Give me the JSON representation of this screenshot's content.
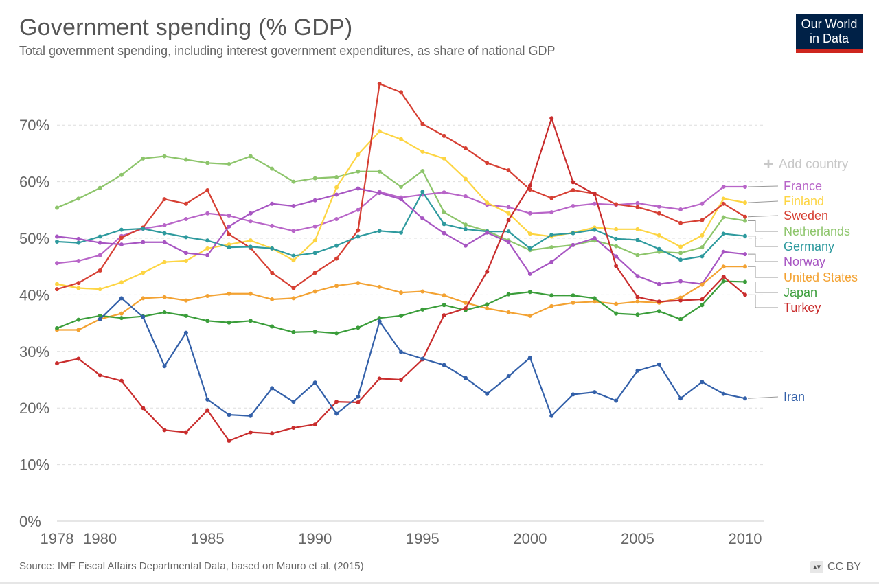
{
  "header": {
    "title": "Government spending (% GDP)",
    "subtitle": "Total government spending, including interest government expenditures, as share of national GDP"
  },
  "logo": {
    "line1": "Our World",
    "line2": "in Data"
  },
  "controls": {
    "add_country_label": "Add country"
  },
  "footer": {
    "source": "Source: IMF Fiscal Affairs Departmental Data, based on Mauro et al. (2015)",
    "license": "CC BY"
  },
  "colors": {
    "grid": "#dddddd",
    "axis_text": "#666666",
    "leader": "#999999"
  },
  "chart_data": {
    "type": "line",
    "title": "Government spending (% GDP)",
    "xlim": [
      1978,
      2010
    ],
    "ylim": [
      0,
      70
    ],
    "y_ticks": [
      0,
      10,
      20,
      30,
      40,
      50,
      60,
      70
    ],
    "y_tick_labels": [
      "0%",
      "10%",
      "20%",
      "30%",
      "40%",
      "50%",
      "60%",
      "70%"
    ],
    "x_ticks": [
      1978,
      1980,
      1985,
      1990,
      1995,
      2000,
      2005,
      2010
    ],
    "x_tick_labels": [
      "1978",
      "1980",
      "1985",
      "1990",
      "1995",
      "2000",
      "2005",
      "2010"
    ],
    "grid": "horizontal dashed",
    "legend_placement": "right (inline labels)",
    "series": [
      {
        "name": "Netherlands",
        "color": "#8dc56b",
        "start_year": 1978,
        "values": [
          55.4,
          57.0,
          58.9,
          61.2,
          64.1,
          64.5,
          63.9,
          63.3,
          63.1,
          64.5,
          62.3,
          60.0,
          60.6,
          60.8,
          61.8,
          61.8,
          59.1,
          61.9,
          54.6,
          52.4,
          51.3,
          49.6,
          47.9,
          48.4,
          48.8,
          49.6,
          48.6,
          47.0,
          47.6,
          47.4,
          48.4,
          53.7,
          53.1
        ]
      },
      {
        "name": "France",
        "color": "#b865c8",
        "start_year": 1978,
        "values": [
          45.6,
          46.0,
          47.0,
          50.4,
          51.7,
          52.3,
          53.4,
          54.4,
          54.0,
          53.0,
          52.2,
          51.3,
          52.1,
          53.4,
          55.0,
          58.2,
          57.2,
          57.7,
          58.1,
          57.4,
          55.9,
          55.5,
          54.4,
          54.6,
          55.7,
          56.1,
          55.9,
          56.2,
          55.6,
          55.1,
          56.1,
          59.1,
          59.1
        ]
      },
      {
        "name": "Finland",
        "color": "#fdd543",
        "start_year": 1978,
        "values": [
          41.9,
          41.2,
          41.0,
          42.2,
          43.9,
          45.8,
          46.0,
          48.2,
          48.9,
          49.6,
          48.2,
          46.1,
          49.6,
          59.0,
          64.8,
          68.9,
          67.5,
          65.3,
          64.1,
          60.5,
          56.3,
          54.4,
          50.8,
          50.3,
          51.0,
          51.9,
          51.6,
          51.6,
          50.5,
          48.5,
          50.5,
          57.0,
          56.3
        ]
      },
      {
        "name": "Sweden",
        "color": "#d63f33",
        "start_year": 1978,
        "values": [
          41.0,
          42.1,
          44.3,
          50.1,
          51.9,
          56.9,
          56.1,
          58.5,
          50.7,
          48.3,
          43.9,
          41.2,
          43.9,
          46.4,
          51.4,
          77.3,
          75.8,
          70.2,
          68.1,
          65.9,
          63.3,
          62.0,
          58.6,
          57.1,
          58.5,
          57.9,
          56.0,
          55.5,
          54.4,
          52.7,
          53.2,
          56.1,
          53.8
        ]
      },
      {
        "name": "Germany",
        "color": "#2e9a9e",
        "start_year": 1978,
        "values": [
          49.4,
          49.2,
          50.3,
          51.5,
          51.7,
          50.9,
          50.2,
          49.6,
          48.4,
          48.5,
          48.2,
          46.9,
          47.4,
          48.7,
          50.3,
          51.3,
          51.0,
          58.2,
          52.5,
          51.6,
          51.2,
          51.2,
          48.2,
          50.6,
          50.9,
          51.5,
          49.9,
          49.7,
          48.1,
          46.2,
          46.8,
          50.8,
          50.4
        ]
      },
      {
        "name": "Norway",
        "color": "#a755c2",
        "start_year": 1978,
        "values": [
          50.3,
          49.9,
          49.2,
          48.9,
          49.3,
          49.3,
          47.4,
          47.0,
          52.1,
          54.4,
          56.1,
          55.7,
          56.7,
          57.7,
          58.8,
          58.0,
          56.9,
          53.5,
          50.9,
          48.7,
          51.0,
          49.3,
          43.7,
          45.8,
          48.8,
          50.0,
          46.8,
          43.3,
          41.9,
          42.4,
          41.9,
          47.6,
          47.2
        ]
      },
      {
        "name": "United States",
        "color": "#f3a232",
        "start_year": 1978,
        "values": [
          33.8,
          33.8,
          35.7,
          36.7,
          39.4,
          39.6,
          39.0,
          39.8,
          40.2,
          40.2,
          39.2,
          39.4,
          40.6,
          41.6,
          42.1,
          41.4,
          40.4,
          40.6,
          39.9,
          38.6,
          37.6,
          36.9,
          36.3,
          38.0,
          38.6,
          38.8,
          38.4,
          38.8,
          38.6,
          39.5,
          41.8,
          45.0,
          45.0
        ]
      },
      {
        "name": "Japan",
        "color": "#3a9d3a",
        "start_year": 1978,
        "values": [
          34.1,
          35.6,
          36.3,
          35.9,
          36.2,
          36.9,
          36.3,
          35.4,
          35.1,
          35.4,
          34.4,
          33.4,
          33.5,
          33.2,
          34.2,
          35.9,
          36.3,
          37.4,
          38.2,
          37.3,
          38.3,
          40.1,
          40.5,
          39.9,
          39.9,
          39.4,
          36.7,
          36.5,
          37.1,
          35.7,
          38.2,
          42.4,
          42.3
        ]
      },
      {
        "name": "Turkey",
        "color": "#c92d2d",
        "start_year": 1978,
        "values": [
          27.9,
          28.7,
          25.8,
          24.8,
          20.0,
          16.1,
          15.7,
          19.6,
          14.2,
          15.7,
          15.5,
          16.5,
          17.1,
          21.1,
          21.0,
          25.2,
          25.0,
          28.6,
          36.4,
          37.6,
          44.1,
          53.2,
          59.3,
          71.2,
          59.9,
          57.8,
          45.1,
          39.6,
          38.8,
          39.0,
          39.2,
          43.2,
          40.0
        ]
      },
      {
        "name": "Iran",
        "color": "#3360a9",
        "start_year": 1980,
        "values": [
          35.7,
          39.4,
          36.1,
          27.4,
          33.3,
          21.5,
          18.8,
          18.6,
          23.5,
          21.1,
          24.5,
          19.0,
          22.0,
          35.3,
          29.9,
          28.7,
          27.6,
          25.3,
          22.5,
          25.6,
          28.9,
          18.6,
          22.4,
          22.8,
          21.3,
          26.6,
          27.7,
          21.7,
          24.6,
          22.5,
          21.7
        ]
      }
    ],
    "label_order": [
      "France",
      "Finland",
      "Sweden",
      "Netherlands",
      "Germany",
      "Norway",
      "United States",
      "Japan",
      "Turkey",
      "Iran"
    ]
  }
}
